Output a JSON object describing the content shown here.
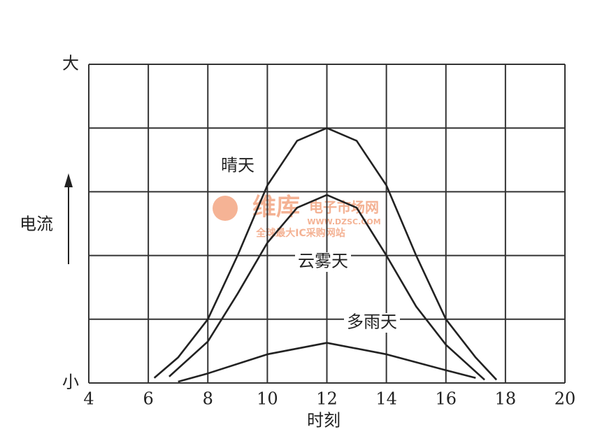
{
  "chart_data": {
    "type": "line",
    "xlabel": "时刻",
    "ylabel": "电流",
    "xlim": [
      4,
      20
    ],
    "xticks": [
      4,
      6,
      8,
      10,
      12,
      14,
      16,
      18,
      20
    ],
    "ylim": [
      0,
      5
    ],
    "yticks": [
      {
        "value": 0,
        "label": "小"
      },
      {
        "value": 5,
        "label": "大"
      }
    ],
    "ygrid": [
      1,
      2,
      3,
      4
    ],
    "grid": true,
    "watermark": [
      "维库",
      "电子市场网",
      "WWW.DZSC.COM",
      "全球最大IC采购网站"
    ],
    "series": [
      {
        "name": "晴天",
        "color": "#222",
        "x": [
          6.2,
          7,
          8,
          9,
          10,
          11,
          12,
          13,
          14,
          15,
          16,
          17,
          17.7
        ],
        "values": [
          0.08,
          0.4,
          1.0,
          2.0,
          3.1,
          3.8,
          4.0,
          3.8,
          3.1,
          2.0,
          1.0,
          0.4,
          0.05
        ]
      },
      {
        "name": "云雾天",
        "color": "#222",
        "x": [
          6.7,
          8,
          9,
          10,
          11,
          12,
          13,
          14,
          15,
          16,
          17.3
        ],
        "values": [
          0.1,
          0.65,
          1.4,
          2.2,
          2.75,
          2.95,
          2.75,
          2.0,
          1.2,
          0.6,
          0.05
        ]
      },
      {
        "name": "多雨天",
        "color": "#222",
        "x": [
          7,
          8,
          10,
          12,
          14,
          16,
          17
        ],
        "values": [
          0.02,
          0.15,
          0.45,
          0.63,
          0.45,
          0.2,
          0.08
        ]
      }
    ]
  }
}
